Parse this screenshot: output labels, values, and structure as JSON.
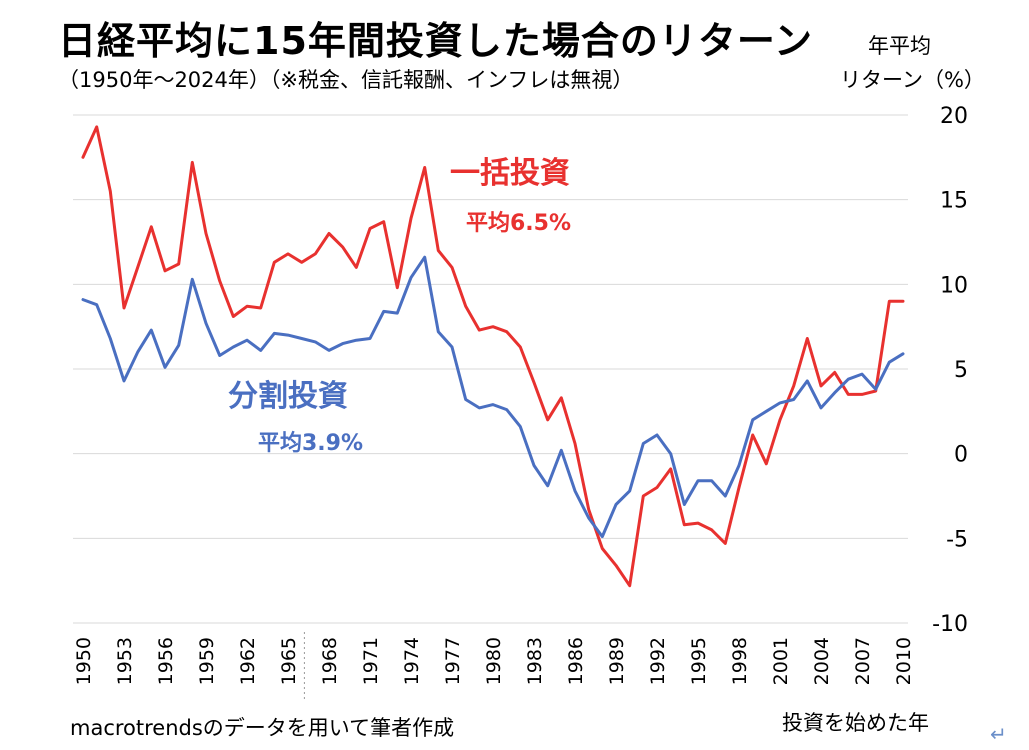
{
  "chart_data": {
    "type": "line",
    "title": "日経平均に15年間投資した場合のリターン",
    "subtitle": "（1950年〜2024年）（※税金、信託報酬、インフレは無視）",
    "ylabel_line1": "年平均",
    "ylabel_line2": "リターン（%）",
    "xlabel": "投資を始めた年",
    "source": "macrotrendsのデータを用いて筆者作成",
    "ylim": [
      -10,
      20
    ],
    "yticks": [
      20,
      15,
      10,
      5,
      0,
      -5,
      -10
    ],
    "x": [
      1950,
      1951,
      1952,
      1953,
      1954,
      1955,
      1956,
      1957,
      1958,
      1959,
      1960,
      1961,
      1962,
      1963,
      1964,
      1965,
      1966,
      1967,
      1968,
      1969,
      1970,
      1971,
      1972,
      1973,
      1974,
      1975,
      1976,
      1977,
      1978,
      1979,
      1980,
      1981,
      1982,
      1983,
      1984,
      1985,
      1986,
      1987,
      1988,
      1989,
      1990,
      1991,
      1992,
      1993,
      1994,
      1995,
      1996,
      1997,
      1998,
      1999,
      2000,
      2001,
      2002,
      2003,
      2004,
      2005,
      2006,
      2007,
      2008,
      2009,
      2010
    ],
    "xticks": [
      1950,
      1953,
      1956,
      1959,
      1962,
      1965,
      1968,
      1971,
      1974,
      1977,
      1980,
      1983,
      1986,
      1989,
      1992,
      1995,
      1998,
      2001,
      2004,
      2007,
      2010
    ],
    "grid": true,
    "series": [
      {
        "name": "一括投資",
        "annotation": "一括投資",
        "annotation_sub": "平均6.5%",
        "color": "#e8312f",
        "values": [
          17.5,
          19.3,
          15.5,
          8.6,
          11.0,
          13.4,
          10.8,
          11.2,
          17.2,
          13.0,
          10.2,
          8.1,
          8.7,
          8.6,
          11.3,
          11.8,
          11.3,
          11.8,
          13.0,
          12.2,
          11.0,
          13.3,
          13.7,
          9.8,
          13.9,
          16.9,
          12.0,
          11.0,
          8.7,
          7.3,
          7.5,
          7.2,
          6.3,
          4.2,
          2.0,
          3.3,
          0.6,
          -3.3,
          -5.6,
          -6.6,
          -7.8,
          -2.5,
          -2.0,
          -0.9,
          -4.2,
          -4.1,
          -4.5,
          -5.3,
          -2.0,
          1.1,
          -0.6,
          2.0,
          4.0,
          6.8,
          4.0,
          4.8,
          3.5,
          3.5,
          3.7,
          9.0,
          9.0
        ]
      },
      {
        "name": "分割投資",
        "annotation": "分割投資",
        "annotation_sub": "平均3.9%",
        "color": "#4a6fc1",
        "values": [
          9.1,
          8.8,
          6.8,
          4.3,
          6.0,
          7.3,
          5.1,
          6.4,
          10.3,
          7.7,
          5.8,
          6.3,
          6.7,
          6.1,
          7.1,
          7.0,
          6.8,
          6.6,
          6.1,
          6.5,
          6.7,
          6.8,
          8.4,
          8.3,
          10.4,
          11.6,
          7.2,
          6.3,
          3.2,
          2.7,
          2.9,
          2.6,
          1.6,
          -0.7,
          -1.9,
          0.2,
          -2.2,
          -3.8,
          -4.9,
          -3.0,
          -2.2,
          0.6,
          1.1,
          0.0,
          -3.0,
          -1.6,
          -1.6,
          -2.5,
          -0.7,
          2.0,
          2.5,
          3.0,
          3.2,
          4.3,
          2.7,
          3.6,
          4.4,
          4.7,
          3.8,
          5.4,
          5.9
        ]
      }
    ]
  }
}
